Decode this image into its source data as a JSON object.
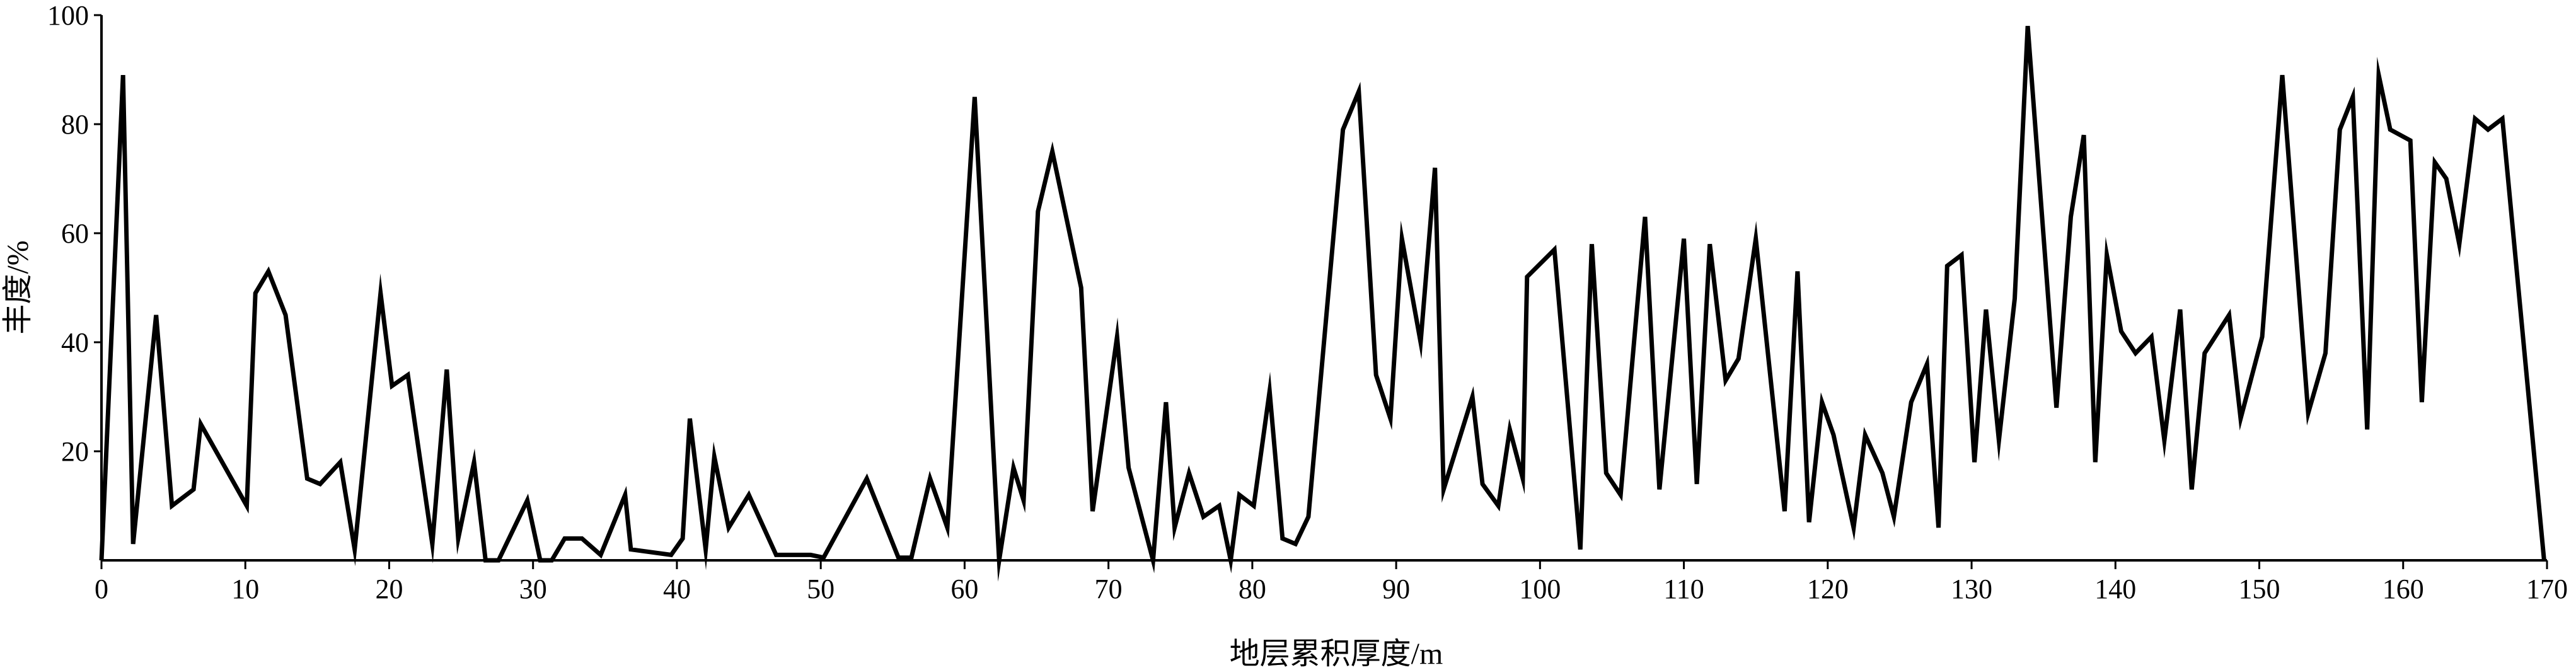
{
  "chart_data": {
    "type": "line",
    "title": "",
    "xlabel": "地层累积厚度/m",
    "ylabel": "丰度/%",
    "xlim": [
      0,
      170
    ],
    "ylim": [
      0,
      100
    ],
    "xticks": [
      0,
      10,
      20,
      30,
      40,
      50,
      60,
      70,
      80,
      90,
      100,
      110,
      120,
      130,
      140,
      150,
      160,
      170
    ],
    "yticks": [
      20,
      40,
      60,
      80,
      100
    ],
    "grid": false,
    "legend": "none",
    "line_color": "#000000",
    "series": [
      {
        "x": [
          0,
          1.5,
          2.2,
          3.8,
          4.9,
          6.4,
          6.9,
          10.1,
          10.7,
          11.6,
          12.8,
          14.3,
          15.2,
          16.6,
          17.6,
          19.4,
          20.2,
          21.3,
          23.0,
          24.0,
          24.8,
          25.9,
          26.7,
          27.6,
          29.6,
          30.5,
          31.3,
          32.2,
          33.4,
          34.7,
          36.4,
          36.8,
          39.6,
          40.4,
          40.9,
          42.0,
          42.6,
          43.6,
          45.0,
          46.9,
          49.3,
          50.2,
          53.2,
          55.4,
          56.3,
          57.6,
          58.8,
          60.7,
          62.4,
          63.4,
          64.1,
          65.1,
          66.1,
          68.1,
          68.9,
          70.6,
          71.4,
          73.1,
          74.0,
          74.6,
          75.6,
          76.6,
          77.7,
          78.5,
          79.1,
          80.1,
          81.2,
          82.1,
          83.0,
          83.9,
          86.3,
          87.4,
          88.6,
          89.6,
          90.4,
          91.7,
          92.7,
          93.3,
          95.3,
          96.0,
          97.1,
          97.9,
          98.8,
          99.1,
          101.0,
          102.8,
          103.6,
          104.6,
          105.6,
          107.3,
          108.3,
          110.0,
          110.9,
          111.8,
          112.9,
          113.8,
          115.0,
          117.0,
          117.9,
          118.7,
          119.6,
          120.4,
          121.8,
          122.6,
          123.8,
          124.6,
          125.8,
          126.9,
          127.7,
          128.3,
          129.3,
          130.2,
          131.0,
          131.9,
          133.0,
          133.9,
          135.9,
          136.9,
          137.8,
          138.6,
          139.4,
          140.4,
          141.4,
          142.5,
          143.4,
          144.5,
          145.3,
          146.2,
          147.9,
          148.7,
          150.2,
          151.6,
          153.4,
          154.6,
          155.6,
          156.5,
          157.5,
          158.3,
          159.1,
          160.5,
          161.3,
          162.2,
          163.0,
          163.9,
          165.0,
          165.9,
          166.9,
          169.8
        ],
        "y": [
          0,
          89,
          3,
          45,
          10,
          13,
          25,
          10,
          49,
          53,
          45,
          15,
          14,
          18,
          2,
          49,
          32,
          34,
          3,
          35,
          4,
          18,
          0,
          0,
          11,
          0,
          0,
          4,
          4,
          1,
          12,
          2,
          1,
          4,
          26,
          2,
          19,
          6,
          12,
          1,
          1,
          0.5,
          15,
          0.5,
          0.5,
          15,
          6,
          85,
          0,
          17,
          11,
          64,
          75,
          50,
          9,
          41,
          17,
          0,
          29,
          6,
          16,
          8,
          10,
          0,
          12,
          10,
          31,
          4,
          3,
          8,
          79,
          86,
          34,
          26,
          59,
          40,
          72,
          13,
          30,
          14,
          10,
          24,
          15,
          52,
          57,
          2,
          58,
          16,
          12,
          63,
          13,
          59,
          14,
          58,
          33,
          37,
          59,
          9,
          53,
          7,
          29,
          23,
          6,
          23,
          16,
          8,
          29,
          36,
          6,
          54,
          56,
          18,
          46,
          22,
          48,
          98,
          28,
          63,
          78,
          18,
          56,
          42,
          38,
          41,
          22,
          46,
          13,
          38,
          45,
          26,
          41,
          89,
          27,
          38,
          79,
          85,
          24,
          89,
          79,
          77,
          29,
          73,
          70,
          58,
          81,
          79,
          81,
          0
        ]
      }
    ]
  }
}
